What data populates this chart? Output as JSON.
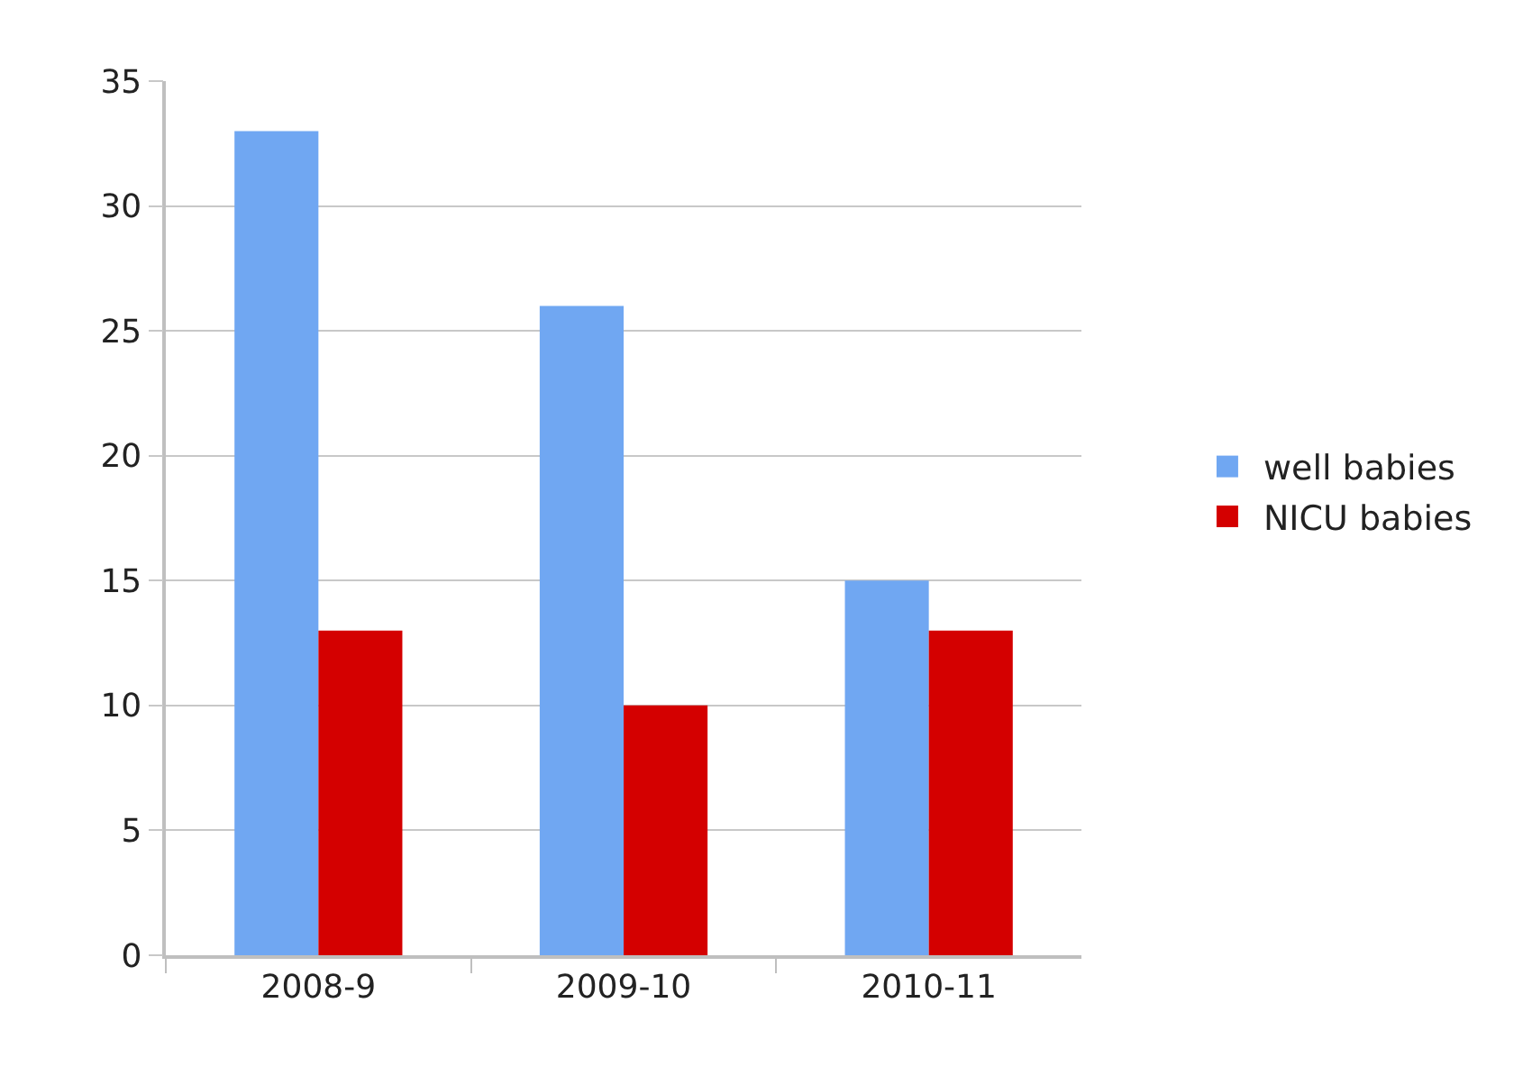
{
  "chart_data": {
    "type": "bar",
    "categories": [
      "2008-9",
      "2009-10",
      "2010-11"
    ],
    "series": [
      {
        "name": "well babies",
        "color": "#70a7f2",
        "values": [
          33,
          26,
          15
        ]
      },
      {
        "name": "NICU babies",
        "color": "#d40000",
        "values": [
          13,
          10,
          13
        ]
      }
    ],
    "ylim": [
      0,
      35
    ],
    "yticks": [
      0,
      5,
      10,
      15,
      20,
      25,
      30,
      35
    ],
    "grid": "y",
    "legend": "right"
  }
}
